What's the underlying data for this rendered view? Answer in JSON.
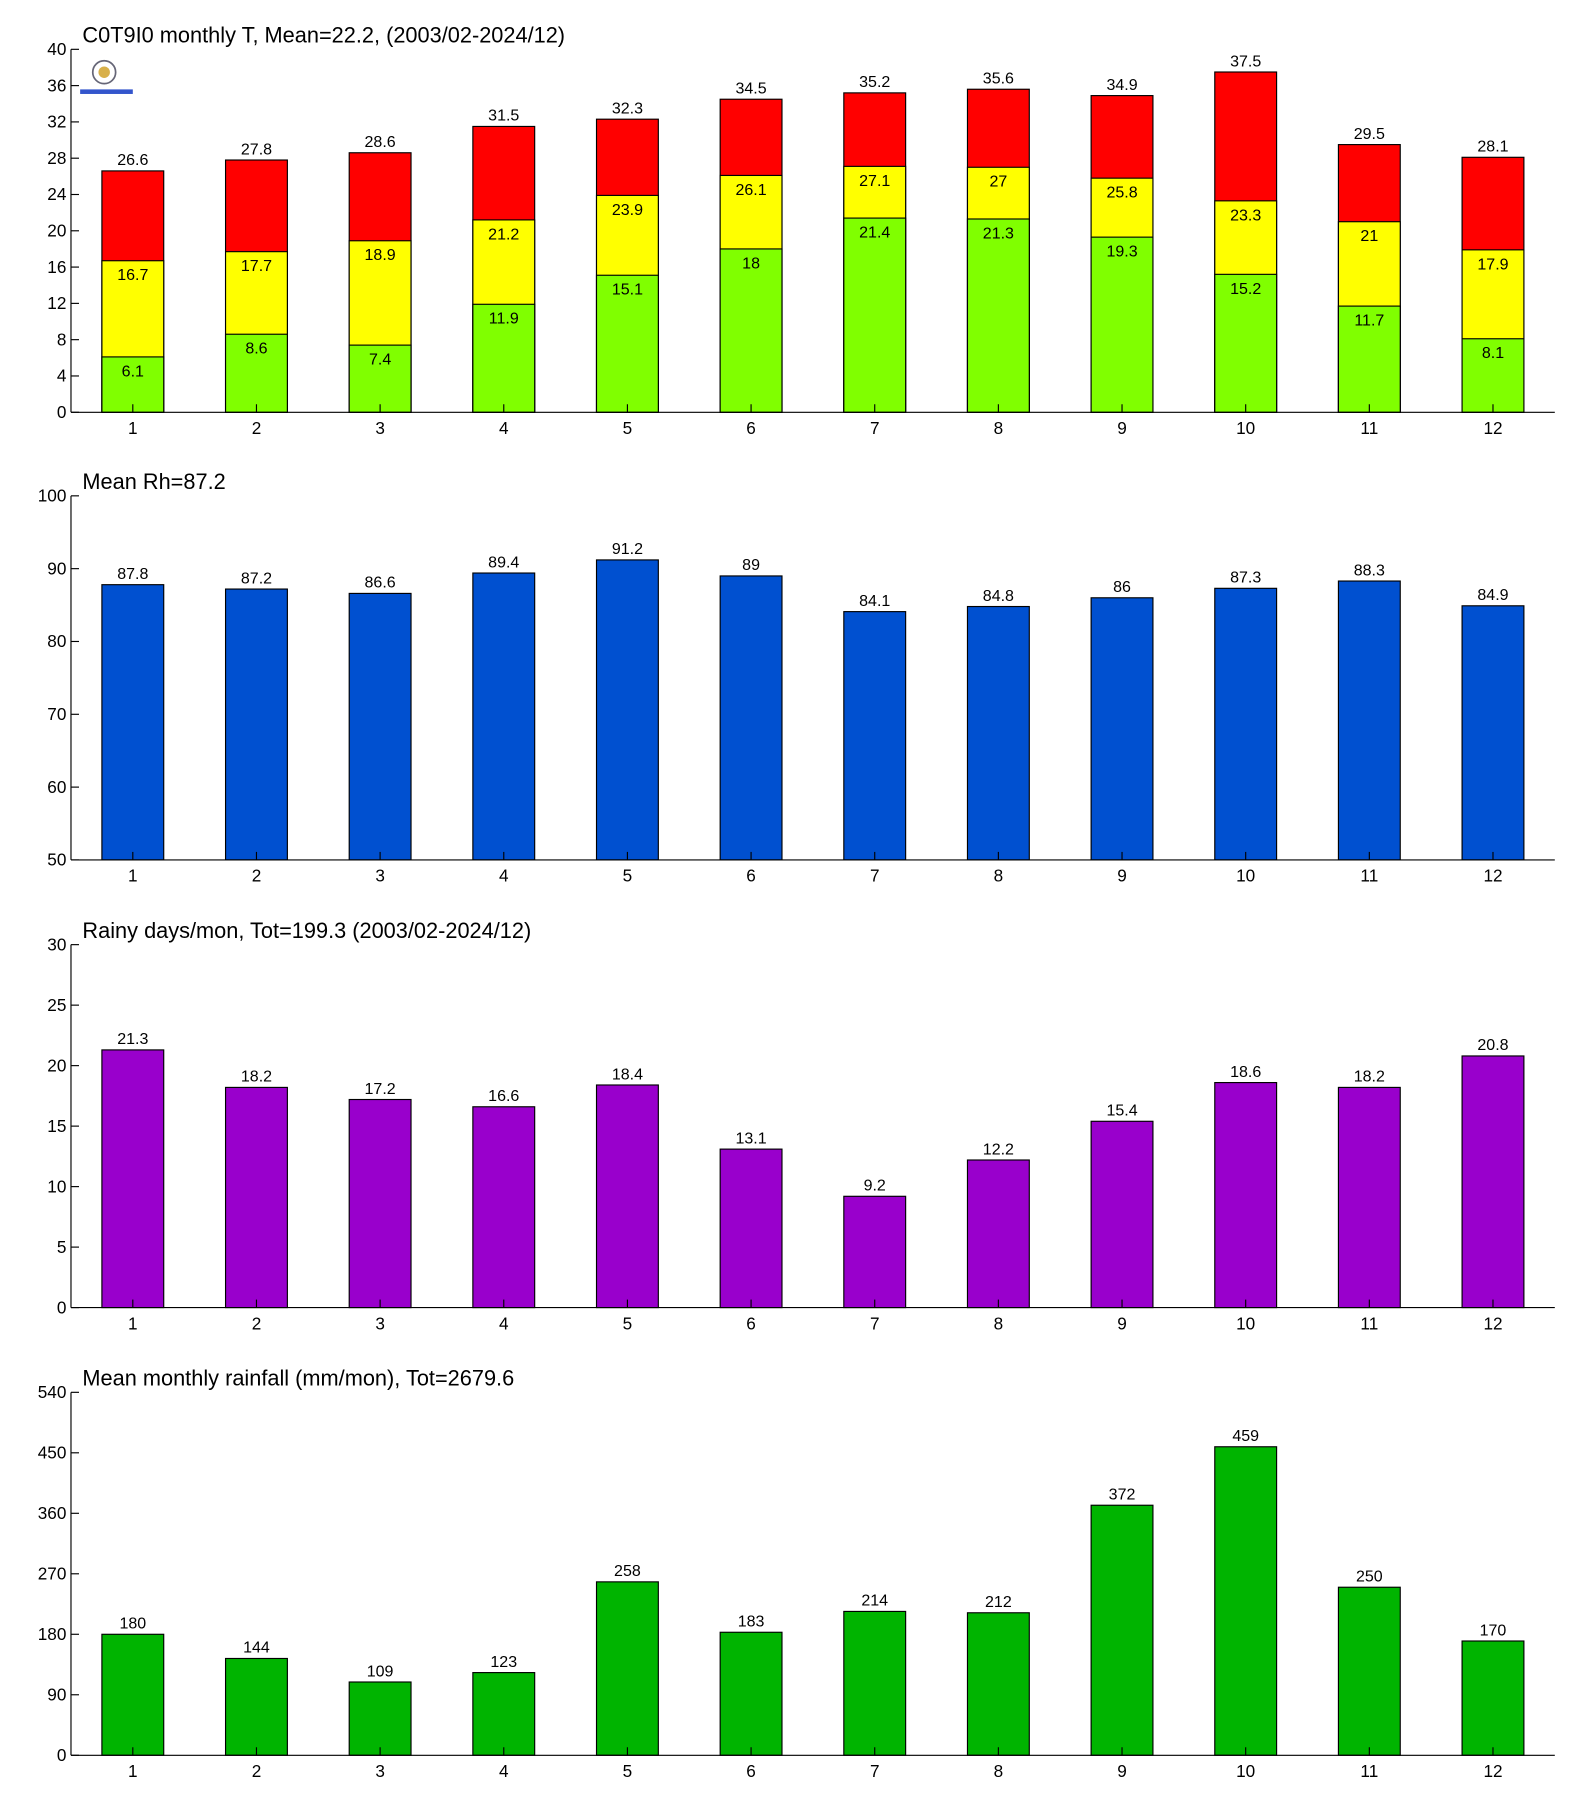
{
  "chart_data": [
    {
      "type": "bar",
      "bar_mode": "overlay",
      "title": "C0T9I0 monthly T, Mean=22.2, (2003/02-2024/12)",
      "categories": [
        "1",
        "2",
        "3",
        "4",
        "5",
        "6",
        "7",
        "8",
        "9",
        "10",
        "11",
        "12"
      ],
      "series": [
        {
          "color": "#ff0000",
          "label_position": "outside",
          "values": [
            26.6,
            27.8,
            28.6,
            31.5,
            32.3,
            34.5,
            35.2,
            35.6,
            34.9,
            37.5,
            29.5,
            28.1
          ]
        },
        {
          "color": "#ffff00",
          "label_position": "inside",
          "values": [
            16.7,
            17.7,
            18.9,
            21.2,
            23.9,
            26.1,
            27.1,
            27,
            25.8,
            23.3,
            21,
            17.9
          ]
        },
        {
          "color": "#80ff00",
          "label_position": "inside",
          "values": [
            6.1,
            8.6,
            7.4,
            11.9,
            15.1,
            18,
            21.4,
            21.3,
            19.3,
            15.2,
            11.7,
            8.1
          ]
        }
      ],
      "ylim": [
        0,
        40
      ],
      "yticks": [
        0,
        4,
        8,
        12,
        16,
        20,
        24,
        28,
        32,
        36,
        40
      ]
    },
    {
      "type": "bar",
      "title": "Mean Rh=87.2",
      "categories": [
        "1",
        "2",
        "3",
        "4",
        "5",
        "6",
        "7",
        "8",
        "9",
        "10",
        "11",
        "12"
      ],
      "values": [
        87.8,
        87.2,
        86.6,
        89.4,
        91.2,
        89,
        84.1,
        84.8,
        86,
        87.3,
        88.3,
        84.9
      ],
      "color": "#0050d0",
      "ylim": [
        50,
        100
      ],
      "yticks": [
        50,
        60,
        70,
        80,
        90,
        100
      ]
    },
    {
      "type": "bar",
      "title": "Rainy days/mon, Tot=199.3 (2003/02-2024/12)",
      "categories": [
        "1",
        "2",
        "3",
        "4",
        "5",
        "6",
        "7",
        "8",
        "9",
        "10",
        "11",
        "12"
      ],
      "values": [
        21.3,
        18.2,
        17.2,
        16.6,
        18.4,
        13.1,
        9.2,
        12.2,
        15.4,
        18.6,
        18.2,
        20.8
      ],
      "color": "#9900cc",
      "ylim": [
        0,
        30
      ],
      "yticks": [
        0,
        5,
        10,
        15,
        20,
        25,
        30
      ]
    },
    {
      "type": "bar",
      "title": "Mean monthly rainfall (mm/mon), Tot=2679.6",
      "categories": [
        "1",
        "2",
        "3",
        "4",
        "5",
        "6",
        "7",
        "8",
        "9",
        "10",
        "11",
        "12"
      ],
      "values": [
        180,
        144,
        109,
        123,
        258,
        183,
        214,
        212,
        372,
        459,
        250,
        170
      ],
      "color": "#00b400",
      "ylim": [
        0,
        540
      ],
      "yticks": [
        0,
        90,
        180,
        270,
        360,
        450,
        540
      ]
    }
  ]
}
